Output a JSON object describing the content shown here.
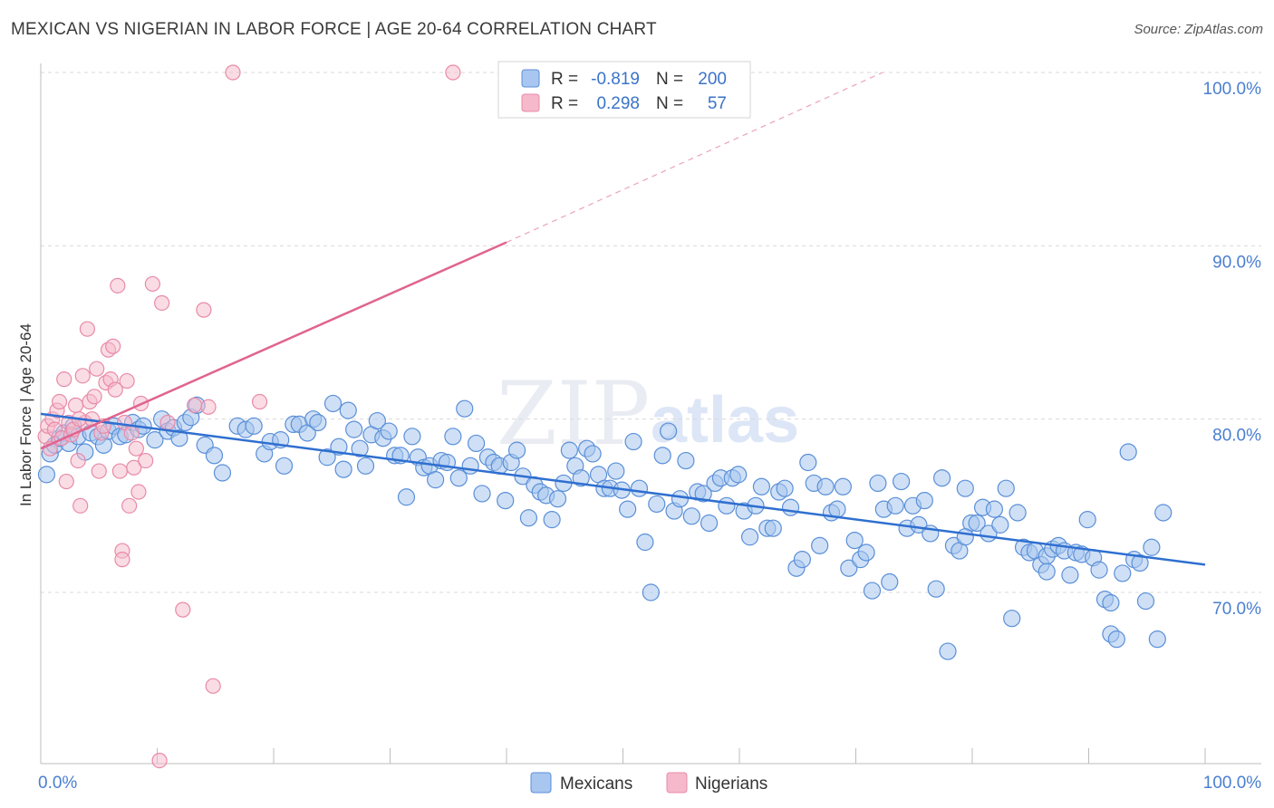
{
  "title": "MEXICAN VS NIGERIAN IN LABOR FORCE | AGE 20-64 CORRELATION CHART",
  "source": "Source: ZipAtlas.com",
  "watermark": {
    "zip": "ZIP",
    "atlas": "atlas"
  },
  "colors": {
    "mexicans_fill": "#a8c6ef",
    "mexicans_stroke": "#5a8fd8",
    "mexicans_line": "#2f6fd0",
    "nigerians_fill": "#f6b9cc",
    "nigerians_stroke": "#e88aa8",
    "nigerians_line": "#e0648f",
    "grid": "#d9d9d9",
    "tick_label": "#4a7fd0"
  },
  "legend": {
    "rows": [
      {
        "r_label": "R = ",
        "r_value": "-0.819",
        "n_label": "N = ",
        "n_value": "200"
      },
      {
        "r_label": "R = ",
        "r_value": "0.298",
        "n_label": "N = ",
        "n_value": "57"
      }
    ]
  },
  "bottom_legend": [
    "Mexicans",
    "Nigerians"
  ],
  "chart_data": {
    "type": "scatter",
    "xlabel": "",
    "ylabel": "In Labor Force | Age 20-64",
    "xlim": [
      0,
      100
    ],
    "ylim": [
      60.3,
      101
    ],
    "x_tick_labels": [
      {
        "value": 0,
        "label": "0.0%"
      },
      {
        "value": 100,
        "label": "100.0%"
      }
    ],
    "y_tick_labels": [
      {
        "value": 100,
        "label": "100.0%"
      },
      {
        "value": 90,
        "label": "90.0%"
      },
      {
        "value": 80,
        "label": "80.0%"
      },
      {
        "value": 70,
        "label": "70.0%"
      }
    ],
    "grid": true,
    "legend_position": "top-center",
    "series": [
      {
        "name": "Mexicans",
        "r": -0.819,
        "n": 200,
        "trend": {
          "x": [
            0,
            100
          ],
          "y": [
            80.3,
            71.6
          ]
        },
        "points": [
          [
            0.5,
            76.8
          ],
          [
            0.8,
            78.0
          ],
          [
            1.2,
            78.5
          ],
          [
            1.6,
            78.9
          ],
          [
            2.0,
            79.2
          ],
          [
            2.4,
            78.6
          ],
          [
            2.8,
            79.6
          ],
          [
            3.2,
            79.0
          ],
          [
            3.8,
            78.1
          ],
          [
            4.3,
            79.2
          ],
          [
            4.9,
            79.0
          ],
          [
            5.4,
            78.5
          ],
          [
            5.8,
            79.3
          ],
          [
            6.3,
            79.6
          ],
          [
            6.8,
            79.0
          ],
          [
            7.3,
            79.1
          ],
          [
            7.9,
            79.8
          ],
          [
            8.4,
            79.4
          ],
          [
            8.8,
            79.6
          ],
          [
            9.8,
            78.8
          ],
          [
            10.4,
            80.0
          ],
          [
            10.9,
            79.3
          ],
          [
            11.4,
            79.5
          ],
          [
            11.9,
            78.9
          ],
          [
            12.4,
            79.8
          ],
          [
            12.9,
            80.1
          ],
          [
            13.4,
            80.8
          ],
          [
            14.1,
            78.5
          ],
          [
            14.9,
            77.9
          ],
          [
            15.6,
            76.9
          ],
          [
            16.9,
            79.6
          ],
          [
            17.6,
            79.4
          ],
          [
            18.3,
            79.6
          ],
          [
            19.2,
            78.0
          ],
          [
            19.7,
            78.7
          ],
          [
            20.6,
            78.8
          ],
          [
            20.9,
            77.3
          ],
          [
            21.7,
            79.7
          ],
          [
            22.2,
            79.7
          ],
          [
            22.9,
            79.2
          ],
          [
            23.4,
            80.0
          ],
          [
            23.8,
            79.8
          ],
          [
            24.6,
            77.8
          ],
          [
            25.1,
            80.9
          ],
          [
            25.6,
            78.4
          ],
          [
            26.0,
            77.1
          ],
          [
            26.4,
            80.5
          ],
          [
            26.9,
            79.4
          ],
          [
            27.4,
            78.3
          ],
          [
            27.9,
            77.3
          ],
          [
            28.4,
            79.1
          ],
          [
            28.9,
            79.9
          ],
          [
            29.4,
            78.9
          ],
          [
            29.9,
            79.3
          ],
          [
            30.4,
            77.9
          ],
          [
            30.9,
            77.9
          ],
          [
            31.4,
            75.5
          ],
          [
            31.9,
            79.0
          ],
          [
            32.4,
            77.8
          ],
          [
            32.9,
            77.2
          ],
          [
            33.4,
            77.3
          ],
          [
            33.9,
            76.5
          ],
          [
            34.4,
            77.6
          ],
          [
            34.9,
            77.5
          ],
          [
            35.4,
            79.0
          ],
          [
            35.9,
            76.6
          ],
          [
            36.4,
            80.6
          ],
          [
            36.9,
            77.3
          ],
          [
            37.4,
            78.6
          ],
          [
            37.9,
            75.7
          ],
          [
            38.4,
            77.8
          ],
          [
            38.9,
            77.5
          ],
          [
            39.4,
            77.3
          ],
          [
            39.9,
            75.3
          ],
          [
            40.4,
            77.5
          ],
          [
            40.9,
            78.2
          ],
          [
            41.4,
            76.7
          ],
          [
            41.9,
            74.3
          ],
          [
            42.4,
            76.2
          ],
          [
            42.9,
            75.8
          ],
          [
            43.4,
            75.6
          ],
          [
            43.9,
            74.2
          ],
          [
            44.4,
            75.4
          ],
          [
            44.9,
            76.3
          ],
          [
            45.4,
            78.2
          ],
          [
            45.9,
            77.3
          ],
          [
            46.4,
            76.6
          ],
          [
            46.9,
            78.3
          ],
          [
            47.4,
            78.0
          ],
          [
            47.9,
            76.8
          ],
          [
            48.4,
            76.0
          ],
          [
            48.9,
            76.0
          ],
          [
            49.4,
            77.0
          ],
          [
            49.9,
            75.9
          ],
          [
            50.4,
            74.8
          ],
          [
            50.9,
            78.7
          ],
          [
            51.4,
            76.0
          ],
          [
            51.9,
            72.9
          ],
          [
            52.4,
            70.0
          ],
          [
            52.9,
            75.1
          ],
          [
            53.4,
            77.9
          ],
          [
            53.9,
            79.3
          ],
          [
            54.4,
            74.7
          ],
          [
            54.9,
            75.4
          ],
          [
            55.4,
            77.6
          ],
          [
            55.9,
            74.4
          ],
          [
            56.4,
            75.8
          ],
          [
            56.9,
            75.7
          ],
          [
            57.4,
            74.0
          ],
          [
            57.9,
            76.3
          ],
          [
            58.4,
            76.6
          ],
          [
            58.9,
            75.0
          ],
          [
            59.4,
            76.6
          ],
          [
            59.9,
            76.8
          ],
          [
            60.4,
            74.7
          ],
          [
            60.9,
            73.2
          ],
          [
            61.4,
            75.0
          ],
          [
            61.9,
            76.1
          ],
          [
            62.4,
            73.7
          ],
          [
            62.9,
            73.7
          ],
          [
            63.4,
            75.8
          ],
          [
            63.9,
            76.0
          ],
          [
            64.4,
            74.9
          ],
          [
            64.9,
            71.4
          ],
          [
            65.4,
            71.9
          ],
          [
            65.9,
            77.5
          ],
          [
            66.4,
            76.3
          ],
          [
            66.9,
            72.7
          ],
          [
            67.4,
            76.1
          ],
          [
            67.9,
            74.6
          ],
          [
            68.4,
            74.8
          ],
          [
            68.9,
            76.1
          ],
          [
            69.4,
            71.4
          ],
          [
            69.9,
            73.0
          ],
          [
            70.4,
            71.9
          ],
          [
            70.9,
            72.3
          ],
          [
            71.4,
            70.1
          ],
          [
            71.9,
            76.3
          ],
          [
            72.4,
            74.8
          ],
          [
            72.9,
            70.6
          ],
          [
            73.4,
            75.0
          ],
          [
            73.9,
            76.4
          ],
          [
            74.4,
            73.7
          ],
          [
            74.9,
            75.0
          ],
          [
            75.4,
            73.9
          ],
          [
            75.9,
            75.3
          ],
          [
            76.4,
            73.4
          ],
          [
            76.9,
            70.2
          ],
          [
            77.4,
            76.6
          ],
          [
            77.9,
            66.6
          ],
          [
            78.4,
            72.7
          ],
          [
            78.9,
            72.4
          ],
          [
            79.4,
            76.0
          ],
          [
            79.9,
            74.0
          ],
          [
            80.4,
            74.0
          ],
          [
            80.9,
            74.9
          ],
          [
            81.4,
            73.4
          ],
          [
            81.9,
            74.8
          ],
          [
            82.4,
            73.9
          ],
          [
            82.9,
            76.0
          ],
          [
            83.4,
            68.5
          ],
          [
            83.9,
            74.6
          ],
          [
            84.4,
            72.6
          ],
          [
            84.9,
            72.3
          ],
          [
            85.4,
            72.4
          ],
          [
            85.9,
            71.6
          ],
          [
            86.4,
            72.1
          ],
          [
            86.9,
            72.5
          ],
          [
            87.4,
            72.7
          ],
          [
            87.9,
            72.4
          ],
          [
            88.4,
            71.0
          ],
          [
            88.9,
            72.3
          ],
          [
            89.4,
            72.2
          ],
          [
            89.9,
            74.2
          ],
          [
            90.4,
            72.0
          ],
          [
            90.9,
            71.3
          ],
          [
            91.4,
            69.6
          ],
          [
            91.9,
            67.6
          ],
          [
            92.4,
            67.3
          ],
          [
            92.9,
            71.1
          ],
          [
            93.4,
            78.1
          ],
          [
            93.9,
            71.9
          ],
          [
            94.4,
            71.7
          ],
          [
            94.9,
            69.5
          ],
          [
            95.4,
            72.6
          ],
          [
            95.9,
            67.3
          ],
          [
            96.4,
            74.6
          ],
          [
            91.9,
            69.4
          ],
          [
            86.4,
            71.2
          ],
          [
            79.4,
            73.2
          ]
        ]
      },
      {
        "name": "Nigerians",
        "r": 0.298,
        "n": 57,
        "trend": {
          "x": [
            0,
            40
          ],
          "y": [
            78.3,
            90.2
          ]
        },
        "trend_extended": {
          "x": [
            40,
            72.3
          ],
          "y": [
            90.2,
            100.0
          ]
        },
        "points": [
          [
            0.4,
            79.0
          ],
          [
            0.6,
            79.6
          ],
          [
            0.8,
            78.3
          ],
          [
            1.0,
            80.0
          ],
          [
            1.2,
            79.4
          ],
          [
            1.4,
            80.5
          ],
          [
            1.6,
            81.0
          ],
          [
            1.8,
            78.9
          ],
          [
            2.0,
            82.3
          ],
          [
            2.2,
            76.4
          ],
          [
            2.4,
            79.8
          ],
          [
            2.6,
            79.1
          ],
          [
            2.8,
            79.4
          ],
          [
            3.0,
            80.8
          ],
          [
            3.2,
            77.6
          ],
          [
            3.4,
            75.0
          ],
          [
            3.6,
            82.5
          ],
          [
            3.8,
            79.8
          ],
          [
            4.0,
            85.2
          ],
          [
            4.2,
            81.0
          ],
          [
            4.4,
            80.0
          ],
          [
            4.6,
            81.3
          ],
          [
            4.8,
            82.9
          ],
          [
            5.0,
            77.0
          ],
          [
            5.2,
            79.2
          ],
          [
            5.4,
            79.6
          ],
          [
            5.6,
            82.1
          ],
          [
            5.8,
            84.0
          ],
          [
            6.0,
            82.3
          ],
          [
            6.2,
            84.2
          ],
          [
            6.4,
            81.7
          ],
          [
            6.6,
            87.7
          ],
          [
            6.8,
            77.0
          ],
          [
            7.0,
            72.4
          ],
          [
            7.2,
            79.8
          ],
          [
            7.4,
            82.2
          ],
          [
            7.6,
            75.0
          ],
          [
            7.8,
            79.2
          ],
          [
            8.0,
            77.2
          ],
          [
            8.2,
            78.3
          ],
          [
            8.4,
            75.8
          ],
          [
            8.6,
            80.9
          ],
          [
            9.0,
            77.6
          ],
          [
            9.6,
            87.8
          ],
          [
            10.4,
            86.7
          ],
          [
            10.9,
            79.8
          ],
          [
            12.2,
            69.0
          ],
          [
            13.2,
            80.8
          ],
          [
            14.0,
            86.3
          ],
          [
            14.4,
            80.7
          ],
          [
            14.8,
            64.6
          ],
          [
            16.5,
            100.0
          ],
          [
            18.8,
            81.0
          ],
          [
            35.4,
            100.0
          ],
          [
            10.2,
            60.3
          ],
          [
            3.3,
            80.0
          ],
          [
            7.0,
            71.9
          ]
        ]
      }
    ]
  }
}
